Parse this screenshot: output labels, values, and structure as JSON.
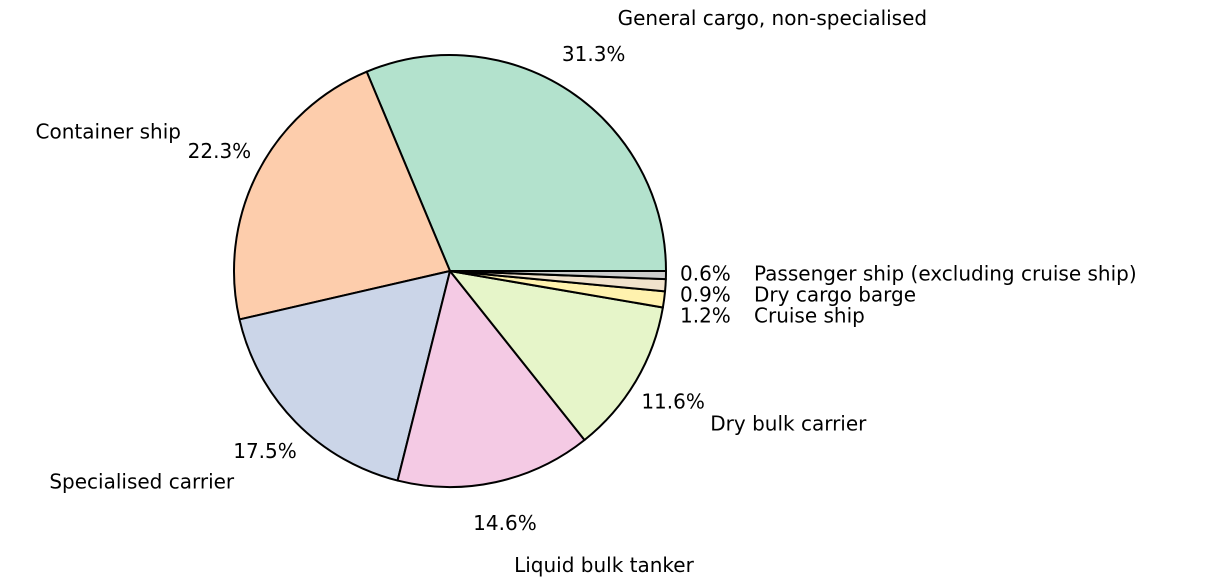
{
  "chart_data": {
    "type": "pie",
    "categories": [
      "General cargo, non-specialised",
      "Container ship",
      "Specialised carrier",
      "Liquid bulk tanker",
      "Dry bulk carrier",
      "Cruise ship",
      "Dry cargo barge",
      "Passenger ship (excluding cruise ship)"
    ],
    "values": [
      31.3,
      22.3,
      17.5,
      14.6,
      11.6,
      1.2,
      0.9,
      0.6
    ],
    "value_labels": [
      "31.3%",
      "22.3%",
      "17.5%",
      "14.6%",
      "11.6%",
      "1.2%",
      "0.9%",
      "0.6%"
    ],
    "colors": [
      "#b3e2cd",
      "#fdcdac",
      "#cbd5e8",
      "#f4cae4",
      "#e6f5c9",
      "#fff2ae",
      "#f1e2cc",
      "#cccccc"
    ]
  }
}
